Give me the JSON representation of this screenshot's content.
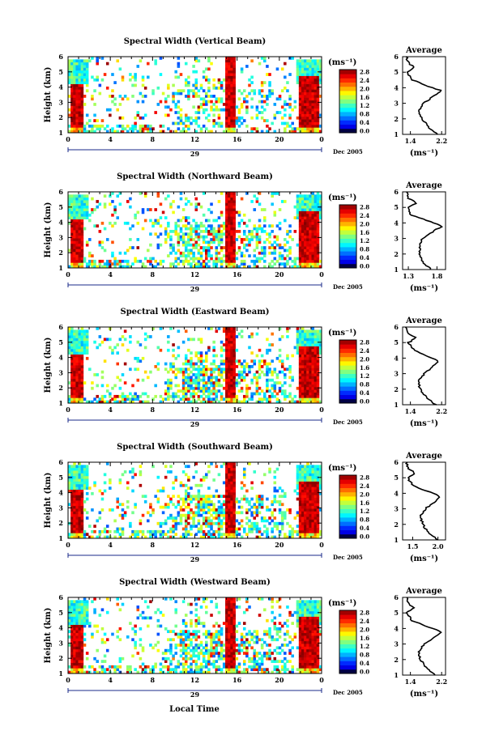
{
  "figure": {
    "xlabel": "Local Time",
    "ylabel": "Height (km)",
    "day_label": "29",
    "month_label": "Dec 2005",
    "colorbar_unit": "(ms⁻¹)",
    "average_title": "Average",
    "average_unit": "(ms⁻¹)"
  },
  "chart_data": [
    {
      "type": "heatmap",
      "title": "Spectral Width (Vertical Beam)",
      "x_ticks": [
        "0",
        "4",
        "8",
        "12",
        "16",
        "20",
        "0"
      ],
      "xlim": [
        0,
        24
      ],
      "y_ticks": [
        "1",
        "2",
        "3",
        "4",
        "5",
        "6"
      ],
      "ylim": [
        1,
        6
      ],
      "colorbar_ticks": [
        "0.0",
        "0.4",
        "0.8",
        "1.2",
        "1.6",
        "2.0",
        "2.4",
        "2.8"
      ],
      "colorbar_range": [
        0,
        3.0
      ],
      "profile": {
        "title": "Average",
        "x_ticks": [
          "1.4",
          "2.2"
        ],
        "xlim": [
          1.2,
          2.3
        ],
        "height": [
          1.0,
          1.5,
          2.0,
          2.5,
          3.0,
          3.5,
          3.8,
          4.0,
          4.5,
          5.0,
          5.3,
          5.6,
          6.0
        ],
        "width": [
          2.1,
          1.85,
          1.7,
          1.6,
          1.75,
          2.0,
          2.2,
          1.95,
          1.45,
          1.3,
          1.5,
          1.35,
          1.3
        ]
      }
    },
    {
      "type": "heatmap",
      "title": "Spectral Width (Northward Beam)",
      "x_ticks": [
        "0",
        "4",
        "8",
        "12",
        "16",
        "20",
        "0"
      ],
      "xlim": [
        0,
        24
      ],
      "y_ticks": [
        "1",
        "2",
        "3",
        "4",
        "5",
        "6"
      ],
      "ylim": [
        1,
        6
      ],
      "colorbar_ticks": [
        "0.0",
        "0.4",
        "0.8",
        "1.2",
        "1.6",
        "2.0",
        "2.4",
        "2.8"
      ],
      "colorbar_range": [
        0,
        3.0
      ],
      "profile": {
        "title": "Average",
        "x_ticks": [
          "1.3",
          "1.8"
        ],
        "xlim": [
          1.2,
          1.95
        ],
        "height": [
          1.0,
          1.5,
          2.0,
          2.5,
          3.0,
          3.5,
          3.8,
          4.0,
          4.5,
          5.0,
          5.3,
          5.6,
          6.0
        ],
        "width": [
          1.7,
          1.55,
          1.5,
          1.5,
          1.55,
          1.75,
          1.9,
          1.75,
          1.35,
          1.3,
          1.45,
          1.3,
          1.28
        ]
      }
    },
    {
      "type": "heatmap",
      "title": "Spectral Width (Eastward Beam)",
      "x_ticks": [
        "0",
        "4",
        "8",
        "12",
        "16",
        "20",
        "0"
      ],
      "xlim": [
        0,
        24
      ],
      "y_ticks": [
        "1",
        "2",
        "3",
        "4",
        "5",
        "6"
      ],
      "ylim": [
        1,
        6
      ],
      "colorbar_ticks": [
        "0.0",
        "0.4",
        "0.8",
        "1.2",
        "1.6",
        "2.0",
        "2.4",
        "2.8"
      ],
      "colorbar_range": [
        0,
        3.0
      ],
      "profile": {
        "title": "Average",
        "x_ticks": [
          "1.4",
          "2.2"
        ],
        "xlim": [
          1.2,
          2.3
        ],
        "height": [
          1.0,
          1.5,
          2.0,
          2.5,
          3.0,
          3.5,
          3.8,
          4.0,
          4.5,
          5.0,
          5.3,
          5.6,
          6.0
        ],
        "width": [
          2.05,
          1.8,
          1.65,
          1.6,
          1.75,
          2.0,
          2.15,
          1.95,
          1.5,
          1.35,
          1.55,
          1.35,
          1.3
        ]
      }
    },
    {
      "type": "heatmap",
      "title": "Spectral Width (Southward Beam)",
      "x_ticks": [
        "0",
        "4",
        "8",
        "12",
        "16",
        "20",
        "0"
      ],
      "xlim": [
        0,
        24
      ],
      "y_ticks": [
        "1",
        "2",
        "3",
        "4",
        "5",
        "6"
      ],
      "ylim": [
        1,
        6
      ],
      "colorbar_ticks": [
        "0.0",
        "0.4",
        "0.8",
        "1.2",
        "1.6",
        "2.0",
        "2.4",
        "2.8"
      ],
      "colorbar_range": [
        0,
        3.0
      ],
      "profile": {
        "title": "Average",
        "x_ticks": [
          "1.5",
          "2.0"
        ],
        "xlim": [
          1.3,
          2.15
        ],
        "height": [
          1.0,
          1.5,
          2.0,
          2.5,
          3.0,
          3.5,
          3.8,
          4.0,
          4.5,
          5.0,
          5.3,
          5.6,
          6.0
        ],
        "width": [
          2.0,
          1.8,
          1.7,
          1.65,
          1.75,
          1.95,
          2.05,
          1.9,
          1.5,
          1.4,
          1.55,
          1.4,
          1.38
        ]
      }
    },
    {
      "type": "heatmap",
      "title": "Spectral Width (Westward Beam)",
      "x_ticks": [
        "0",
        "4",
        "8",
        "12",
        "16",
        "20",
        "0"
      ],
      "xlim": [
        0,
        24
      ],
      "y_ticks": [
        "1",
        "2",
        "3",
        "4",
        "5",
        "6"
      ],
      "ylim": [
        1,
        6
      ],
      "colorbar_ticks": [
        "0.0",
        "0.4",
        "0.8",
        "1.2",
        "1.6",
        "2.0",
        "2.4",
        "2.8"
      ],
      "colorbar_range": [
        0,
        3.0
      ],
      "profile": {
        "title": "Average",
        "x_ticks": [
          "1.4",
          "2.2"
        ],
        "xlim": [
          1.2,
          2.3
        ],
        "height": [
          1.0,
          1.5,
          2.0,
          2.5,
          3.0,
          3.5,
          3.8,
          4.0,
          4.5,
          5.0,
          5.3,
          5.6,
          6.0
        ],
        "width": [
          2.05,
          1.8,
          1.65,
          1.6,
          1.75,
          2.05,
          2.2,
          1.95,
          1.45,
          1.3,
          1.5,
          1.35,
          1.3
        ]
      }
    }
  ]
}
